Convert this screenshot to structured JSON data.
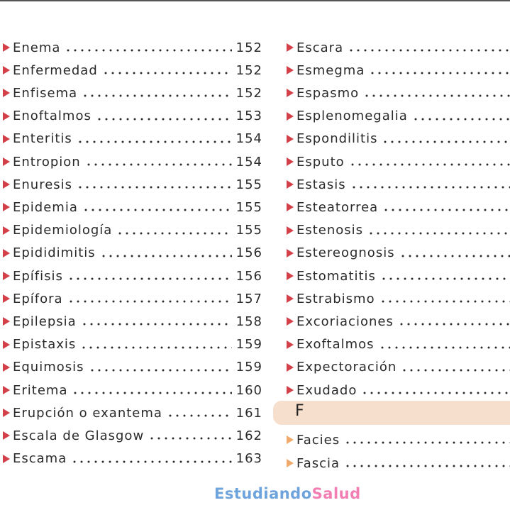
{
  "left": [
    {
      "term": "Enema",
      "page": "152"
    },
    {
      "term": "Enfermedad",
      "page": "152"
    },
    {
      "term": "Enfisema",
      "page": "152"
    },
    {
      "term": "Enoftalmos",
      "page": "153"
    },
    {
      "term": "Enteritis",
      "page": "154"
    },
    {
      "term": "Entropion",
      "page": "154"
    },
    {
      "term": "Enuresis",
      "page": "155"
    },
    {
      "term": "Epidemia",
      "page": "155"
    },
    {
      "term": "Epidemiología",
      "page": "155"
    },
    {
      "term": "Epididimitis",
      "page": "156"
    },
    {
      "term": "Epífisis",
      "page": "156"
    },
    {
      "term": "Epífora",
      "page": "157"
    },
    {
      "term": "Epilepsia",
      "page": "158"
    },
    {
      "term": "Epistaxis",
      "page": "159"
    },
    {
      "term": "Equimosis",
      "page": "159"
    },
    {
      "term": "Eritema",
      "page": "160"
    },
    {
      "term": "Erupción o exantema",
      "page": "161"
    },
    {
      "term": "Escala de Glasgow",
      "page": "162"
    },
    {
      "term": "Escama",
      "page": "163"
    }
  ],
  "right": [
    {
      "term": "Escara"
    },
    {
      "term": "Esmegma"
    },
    {
      "term": "Espasmo"
    },
    {
      "term": "Esplenomegalia"
    },
    {
      "term": "Espondilitis"
    },
    {
      "term": "Esputo"
    },
    {
      "term": "Estasis"
    },
    {
      "term": "Esteatorrea"
    },
    {
      "term": "Estenosis"
    },
    {
      "term": "Estereognosis"
    },
    {
      "term": "Estomatitis"
    },
    {
      "term": "Estrabismo"
    },
    {
      "term": "Excoriaciones"
    },
    {
      "term": "Exoftalmos"
    },
    {
      "term": "Expectoración"
    },
    {
      "term": "Exudado"
    }
  ],
  "section": {
    "letter": "F",
    "entries": [
      {
        "term": "Facies"
      },
      {
        "term": "Fascia"
      }
    ]
  },
  "footer": {
    "brand1": "Estudiando",
    "brand2": "Salud"
  }
}
